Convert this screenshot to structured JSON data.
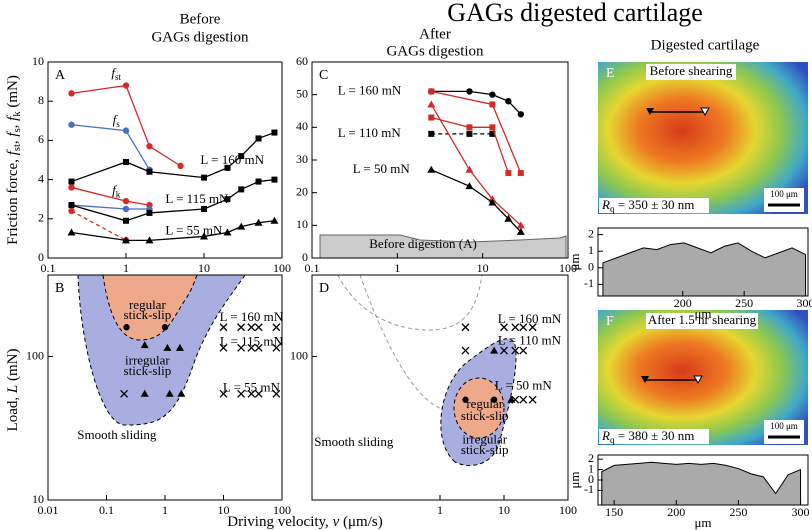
{
  "title": "GAGs digested cartilage",
  "headings": {
    "before": [
      "Before",
      "GAGs digestion"
    ],
    "after": [
      "After",
      "GAGs digestion"
    ],
    "digested": "Digested cartilage"
  },
  "y_label_top": {
    "parts": [
      "Friction force, ",
      "f",
      "st",
      ", ",
      "f",
      "s",
      ", ",
      "f",
      "k",
      " (mN)"
    ],
    "styles": [
      "n",
      "i",
      "sub",
      "n",
      "i",
      "sub",
      "n",
      "i",
      "sub",
      "n"
    ]
  },
  "y_label_bottom": {
    "parts": [
      "Load, ",
      "L",
      " (mN)"
    ],
    "styles": [
      "n",
      "i",
      "n"
    ]
  },
  "x_label": {
    "parts": [
      "Driving velocity, ",
      "v",
      " (μm/s)"
    ],
    "styles": [
      "n",
      "i",
      "n"
    ]
  },
  "images": [
    {
      "panel": "E",
      "caption": "Before shearing",
      "roughness": {
        "parts": [
          "R",
          "q",
          " = 350 ± 30 nm"
        ],
        "styles": [
          "i",
          "sub",
          "n"
        ]
      },
      "scale": "100 μm"
    },
    {
      "panel": "F",
      "caption": "After 1.5 hr shearing",
      "roughness": {
        "parts": [
          "R",
          "q",
          " = 380 ± 30 nm"
        ],
        "styles": [
          "i",
          "sub",
          "n"
        ]
      },
      "scale": "100 μm"
    }
  ],
  "chart_data": [
    {
      "type": "line",
      "panel_label": "A",
      "xlog": true,
      "ylog": false,
      "xlim": [
        0.1,
        100
      ],
      "xticks": [
        0.1,
        1,
        10,
        100
      ],
      "ylim": [
        0,
        10
      ],
      "yticks": [
        0,
        2,
        4,
        6,
        8,
        10
      ],
      "series": [
        {
          "color": "#d42a2a",
          "marker": "circle",
          "line": "solid",
          "x": [
            0.2,
            1,
            2,
            5
          ],
          "values": [
            8.4,
            8.8,
            5.7,
            4.7
          ]
        },
        {
          "color": "#4a6fbf",
          "marker": "circle",
          "line": "solid",
          "x": [
            0.2,
            1,
            2
          ],
          "values": [
            6.8,
            6.5,
            4.5
          ]
        },
        {
          "color": "#000000",
          "marker": "square",
          "line": "solid",
          "x": [
            0.2,
            1,
            2,
            10,
            20,
            30,
            50,
            80
          ],
          "values": [
            3.9,
            4.9,
            4.4,
            4.1,
            4.6,
            5.2,
            6.1,
            6.4
          ]
        },
        {
          "color": "#d42a2a",
          "marker": "circle",
          "line": "solid",
          "x": [
            0.2,
            1,
            2
          ],
          "values": [
            3.6,
            2.9,
            2.7
          ]
        },
        {
          "color": "#4a6fbf",
          "marker": "circle",
          "line": "solid",
          "x": [
            0.2,
            1,
            2
          ],
          "values": [
            2.7,
            2.5,
            2.5
          ]
        },
        {
          "color": "#000000",
          "marker": "square",
          "line": "solid",
          "x": [
            0.2,
            1,
            2,
            10,
            20,
            30,
            50,
            80
          ],
          "values": [
            2.7,
            1.9,
            2.3,
            2.5,
            3.0,
            3.5,
            3.9,
            4.0
          ]
        },
        {
          "color": "#d42a2a",
          "marker": "circle",
          "line": "dashed",
          "x": [
            0.2,
            1
          ],
          "values": [
            2.4,
            0.9
          ]
        },
        {
          "color": "#000000",
          "marker": "triangle",
          "line": "solid",
          "x": [
            0.2,
            1,
            2,
            10,
            20,
            30,
            50,
            80
          ],
          "values": [
            1.3,
            0.9,
            0.9,
            1.1,
            1.3,
            1.6,
            1.8,
            1.9
          ]
        }
      ],
      "annotations": [
        {
          "text": "f",
          "sub": "st"
        },
        {
          "text": "f",
          "sub": "s"
        },
        {
          "text": "f",
          "sub": "k"
        },
        "L = 160 mN",
        "L = 115 mN",
        "L = 55 mN"
      ]
    },
    {
      "type": "line",
      "panel_label": "C",
      "xlog": true,
      "ylog": false,
      "xlim": [
        0.1,
        100
      ],
      "xticks": [
        0.1,
        1,
        10,
        100
      ],
      "ylim": [
        0,
        60
      ],
      "yticks": [
        0,
        10,
        20,
        30,
        40,
        50,
        60
      ],
      "series": [
        {
          "color": "#000000",
          "marker": "circle",
          "line": "solid",
          "x": [
            2.5,
            7,
            13,
            20,
            28
          ],
          "values": [
            51,
            51,
            50,
            48,
            44
          ]
        },
        {
          "color": "#d42a2a",
          "marker": "square",
          "line": "solid",
          "x": [
            2.5,
            13,
            28
          ],
          "values": [
            51,
            47,
            26
          ]
        },
        {
          "color": "#000000",
          "marker": "square",
          "line": "dashed",
          "x": [
            2.5,
            7,
            13
          ],
          "values": [
            38,
            38,
            38
          ]
        },
        {
          "color": "#d42a2a",
          "marker": "square",
          "line": "solid",
          "x": [
            2.5,
            7,
            13,
            20
          ],
          "values": [
            43,
            40,
            40,
            26
          ]
        },
        {
          "color": "#d42a2a",
          "marker": "triangle",
          "line": "solid",
          "x": [
            2.5,
            7,
            13,
            28
          ],
          "values": [
            47,
            27,
            18,
            10
          ]
        },
        {
          "color": "#000000",
          "marker": "triangle",
          "line": "solid",
          "x": [
            2.5,
            7,
            13,
            20,
            28
          ],
          "values": [
            27,
            22,
            17,
            12,
            8
          ]
        }
      ],
      "annotations": [
        "L = 160 mN",
        "L = 110 mN",
        "L = 50 mN",
        "Before digestion (A)"
      ]
    },
    {
      "type": "scatter",
      "panel_label": "B",
      "xlog": true,
      "ylog": true,
      "xlim": [
        0.01,
        100
      ],
      "xticks": [
        0.01,
        0.1,
        1,
        10,
        100
      ],
      "ylim": [
        10,
        370
      ],
      "yticks": [
        10,
        100
      ],
      "series": [
        {
          "color": "#000000",
          "marker": "circle",
          "line": "none",
          "x": [
            0.22,
            1
          ],
          "values": [
            160,
            160
          ]
        },
        {
          "color": "#000000",
          "marker": "triangle",
          "line": "none",
          "x": [
            0.45,
            1.1,
            1.8,
            0.45,
            1.2,
            1.9
          ],
          "values": [
            120,
            115,
            115,
            55,
            55,
            55
          ]
        },
        {
          "color": "#000000",
          "marker": "cross",
          "line": "none",
          "x": [
            10,
            20,
            30,
            40,
            80,
            10,
            20,
            30,
            40,
            80,
            10,
            20,
            30,
            40,
            80,
            0.2
          ],
          "values": [
            160,
            160,
            160,
            160,
            160,
            115,
            115,
            115,
            115,
            115,
            55,
            55,
            55,
            55,
            55,
            55
          ]
        }
      ],
      "annotations": [
        "regular",
        "stick-slip",
        "irregular",
        "stick-slip",
        "L = 160 mN",
        "L = 115 mN",
        "L = 55 mN",
        "Smooth sliding"
      ]
    },
    {
      "type": "scatter",
      "panel_label": "D",
      "xlog": true,
      "ylog": true,
      "xlim": [
        0.01,
        100
      ],
      "xticks": [
        1,
        10,
        100
      ],
      "ylim": [
        10,
        370
      ],
      "yticks": [
        100
      ],
      "series": [
        {
          "color": "#000000",
          "marker": "circle",
          "line": "none",
          "x": [
            2.5,
            7
          ],
          "values": [
            50,
            50
          ]
        },
        {
          "color": "#000000",
          "marker": "triangle",
          "line": "none",
          "x": [
            7,
            13
          ],
          "values": [
            110,
            50
          ]
        },
        {
          "color": "#000000",
          "marker": "cross",
          "line": "none",
          "x": [
            2.5,
            10,
            15,
            20,
            28,
            2.5,
            10,
            15,
            20,
            15,
            20,
            28
          ],
          "values": [
            160,
            160,
            160,
            160,
            160,
            110,
            110,
            110,
            110,
            50,
            50,
            50
          ]
        }
      ],
      "annotations": [
        "L = 160 mN",
        "L = 110 mN",
        "L = 50 mN",
        "regular",
        "stick-slip",
        "irregular",
        "stick-slip",
        "Smooth sliding"
      ]
    },
    {
      "type": "area",
      "xlog": false,
      "ylog": false,
      "xlim": [
        131,
        302
      ],
      "xticks": [
        200,
        250,
        300
      ],
      "ylim": [
        -1.7,
        2.4
      ],
      "yticks": [
        -1,
        0,
        1,
        2
      ],
      "y_label": "μm",
      "x_label": "μm",
      "series": [
        {
          "color": "#aaaaaa",
          "x": [
            135,
            146,
            157,
            168,
            179,
            190,
            201,
            212,
            223,
            234,
            245,
            256,
            267,
            278,
            289,
            300
          ],
          "values": [
            0.3,
            0.6,
            0.9,
            1.2,
            1.1,
            1.4,
            1.5,
            1.2,
            0.9,
            1.3,
            1.5,
            1.0,
            0.6,
            0.9,
            1.2,
            0.8
          ]
        }
      ]
    },
    {
      "type": "area",
      "xlog": false,
      "ylog": false,
      "xlim": [
        137,
        306
      ],
      "xticks": [
        150,
        200,
        250,
        300
      ],
      "ylim": [
        -2.4,
        2.4
      ],
      "yticks": [
        -1,
        0,
        1,
        2
      ],
      "y_label": "μm",
      "x_label": "μm",
      "series": [
        {
          "color": "#aaaaaa",
          "x": [
            140,
            150,
            160,
            170,
            180,
            190,
            200,
            210,
            220,
            230,
            240,
            250,
            260,
            270,
            280,
            290,
            300
          ],
          "values": [
            0.8,
            1.4,
            1.5,
            1.6,
            1.7,
            1.6,
            1.5,
            1.6,
            1.5,
            1.6,
            1.4,
            1.1,
            0.6,
            0.3,
            -1.3,
            0.5,
            1.0
          ]
        }
      ]
    }
  ]
}
